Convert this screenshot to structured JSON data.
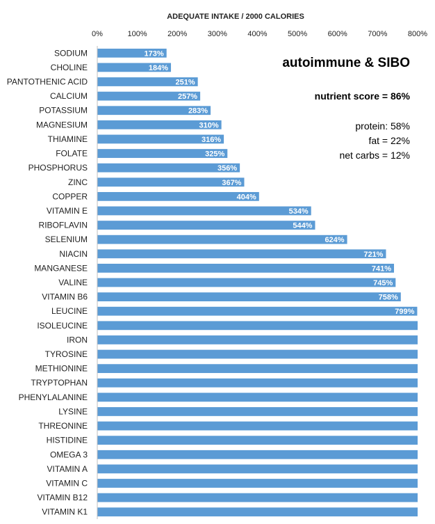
{
  "chart_data": {
    "type": "bar",
    "orientation": "horizontal",
    "title": "ADEQUATE INTAKE / 2000 CALORIES",
    "xlabel": "ADEQUATE INTAKE / 2000 CALORIES",
    "ylabel": "",
    "xlim": [
      0,
      800
    ],
    "xticks": [
      "0%",
      "100%",
      "200%",
      "300%",
      "400%",
      "500%",
      "600%",
      "700%",
      "800%"
    ],
    "grid": false,
    "bar_color": "#5b9bd5",
    "categories": [
      "SODIUM",
      "CHOLINE",
      "PANTOTHENIC ACID",
      "CALCIUM",
      "POTASSIUM",
      "MAGNESIUM",
      "THIAMINE",
      "FOLATE",
      "PHOSPHORUS",
      "ZINC",
      "COPPER",
      "VITAMIN E",
      "RIBOFLAVIN",
      "SELENIUM",
      "NIACIN",
      "MANGANESE",
      "VALINE",
      "VITAMIN B6",
      "LEUCINE",
      "ISOLEUCINE",
      "IRON",
      "TYROSINE",
      "METHIONINE",
      "TRYPTOPHAN",
      "PHENYLALANINE",
      "LYSINE",
      "THREONINE",
      "HISTIDINE",
      "OMEGA 3",
      "VITAMIN A",
      "VITAMIN C",
      "VITAMIN B12",
      "VITAMIN K1"
    ],
    "values": [
      173,
      184,
      251,
      257,
      283,
      310,
      316,
      325,
      356,
      367,
      404,
      534,
      544,
      624,
      721,
      741,
      745,
      758,
      799,
      800,
      800,
      800,
      800,
      800,
      800,
      800,
      800,
      800,
      800,
      800,
      800,
      800,
      800
    ],
    "data_labels": [
      "173%",
      "184%",
      "251%",
      "257%",
      "283%",
      "310%",
      "316%",
      "325%",
      "356%",
      "367%",
      "404%",
      "534%",
      "544%",
      "624%",
      "721%",
      "741%",
      "745%",
      "758%",
      "799%",
      "",
      "",
      "",
      "",
      "",
      "",
      "",
      "",
      "",
      "",
      "",
      "",
      "",
      ""
    ]
  },
  "annotations": {
    "title": "autoimmune & SIBO",
    "nutrient_score": "nutrient score = 86%",
    "protein": "protein: 58%",
    "fat": "fat = 22%",
    "net_carbs": "net carbs = 12%"
  }
}
